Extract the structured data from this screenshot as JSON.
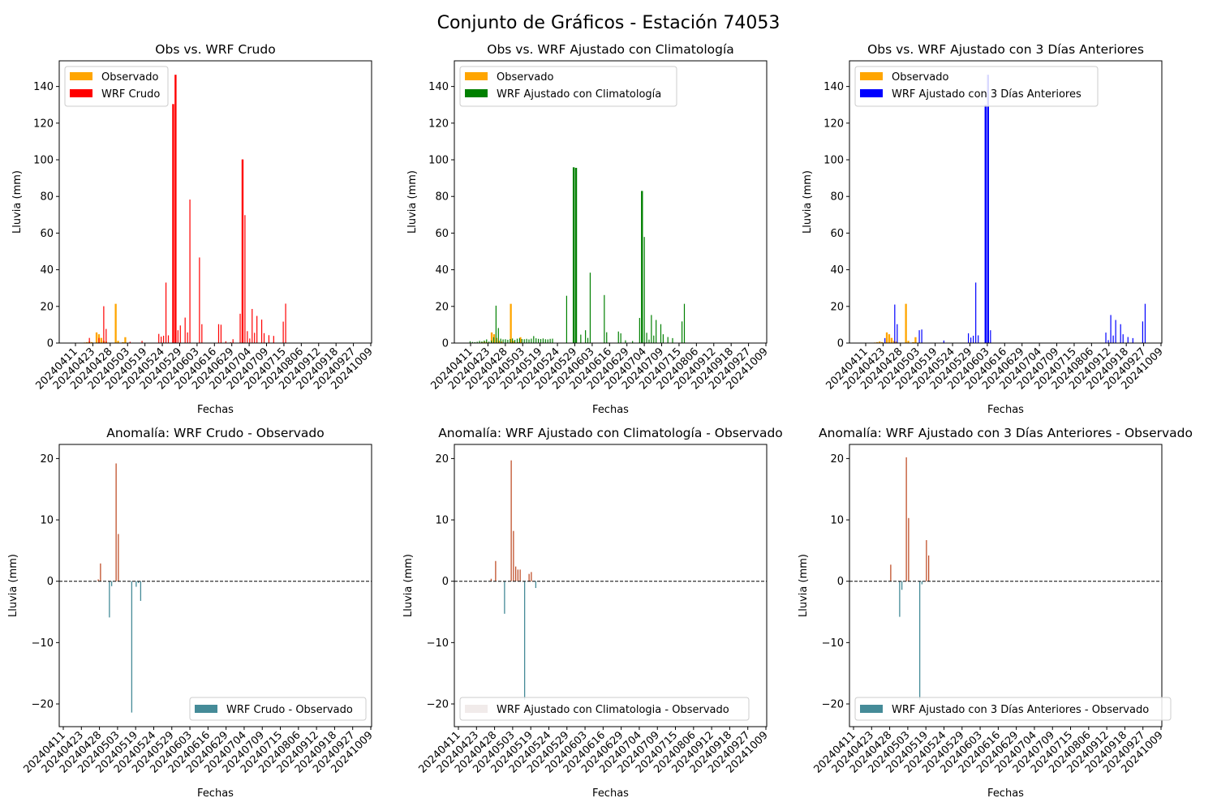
{
  "figure": {
    "title": "Conjunto de Gráficos - Estación 74053"
  },
  "colors": {
    "observed": "#ffa500",
    "wrf_raw": "#ff0000",
    "wrf_clim": "#008000",
    "wrf_3days": "#0000ff",
    "anomaly_negative": "#458b98",
    "anomaly_positive": "#c0502a",
    "legend_pale": "#f1ebea"
  },
  "chart_data": [
    {
      "type": "bar",
      "title": "Obs vs. WRF Crudo",
      "xlabel": "Fechas",
      "ylabel": "Lluvia (mm)",
      "ylim": [
        0,
        154
      ],
      "yticks": [
        0,
        20,
        40,
        60,
        80,
        100,
        120,
        140
      ],
      "xticks": [
        "20240411",
        "20240423",
        "20240428",
        "20240503",
        "20240519",
        "20240524",
        "20240529",
        "20240603",
        "20240616",
        "20240629",
        "20240704",
        "20240709",
        "20240715",
        "20240806",
        "20240912",
        "20240918",
        "20240927",
        "20241009"
      ],
      "legend": "top-left",
      "series": [
        {
          "name": "Observado",
          "color_key": "observed",
          "values": [
            0,
            0,
            0,
            0,
            0.3,
            0.5,
            0.8,
            0.5,
            0,
            5.8,
            4.8,
            2.8,
            1.2,
            0.8,
            0,
            0,
            0,
            21.4,
            1.2,
            0,
            0.5,
            3.2,
            0,
            0,
            0,
            0,
            0,
            0,
            0,
            0,
            0,
            0,
            0,
            0,
            0,
            0,
            0,
            0,
            0,
            0,
            0,
            0,
            0,
            0,
            0,
            0,
            0,
            0,
            0,
            0,
            0,
            0,
            0,
            0,
            0,
            0,
            0,
            0,
            0,
            0,
            0,
            0,
            0,
            0,
            0,
            0,
            0,
            0,
            0,
            0,
            0,
            0,
            0,
            0,
            0,
            0,
            0,
            0,
            0,
            0,
            0,
            0,
            0,
            0,
            0,
            0,
            0,
            0,
            0,
            0,
            0,
            0,
            0,
            0,
            0,
            0,
            0,
            0,
            0,
            0,
            0,
            0,
            0,
            0,
            0,
            0,
            0,
            0,
            0,
            0,
            0,
            0,
            0,
            0,
            0,
            0,
            0,
            0,
            0,
            0
          ]
        },
        {
          "name": "WRF Crudo",
          "color_key": "wrf_raw",
          "values": [
            0,
            0,
            0,
            0,
            0,
            0,
            2.8,
            0,
            0,
            0,
            2.8,
            0,
            20.1,
            7.7,
            0,
            0,
            0,
            0,
            0,
            0,
            0,
            0,
            0,
            0.7,
            0,
            0,
            0,
            0,
            1.2,
            0,
            0,
            0,
            0,
            0,
            0,
            5.0,
            3.5,
            4.0,
            33.0,
            4.2,
            0,
            130.4,
            146.4,
            7.0,
            9.6,
            0,
            13.9,
            5.8,
            78.3,
            0,
            0,
            0,
            46.7,
            10.3,
            0,
            0,
            0,
            0,
            0,
            0,
            10.3,
            10.0,
            0,
            1.0,
            0,
            0.5,
            2.1,
            0,
            0,
            16.0,
            100.2,
            69.8,
            6.5,
            2.5,
            18.6,
            5.6,
            14.8,
            0,
            12.8,
            5.4,
            0,
            4.3,
            0,
            3.9,
            0,
            0,
            0,
            11.7,
            21.5,
            0,
            0,
            0,
            0,
            0,
            0,
            0,
            0,
            0,
            0,
            0,
            0,
            0,
            0,
            0,
            0,
            0,
            0,
            0,
            0,
            0,
            0,
            0,
            0,
            0,
            0,
            0,
            0,
            0,
            0,
            0
          ]
        }
      ]
    },
    {
      "type": "bar",
      "title": "Obs vs. WRF Ajustado con Climatología",
      "xlabel": "Fechas",
      "ylabel": "Lluvia (mm)",
      "ylim": [
        0,
        154
      ],
      "yticks": [
        0,
        20,
        40,
        60,
        80,
        100,
        120,
        140
      ],
      "xticks": [
        "20240411",
        "20240423",
        "20240428",
        "20240503",
        "20240519",
        "20240524",
        "20240529",
        "20240603",
        "20240616",
        "20240629",
        "20240704",
        "20240709",
        "20240715",
        "20240806",
        "20240912",
        "20240918",
        "20240927",
        "20241009"
      ],
      "legend": "top-left",
      "series": [
        {
          "name": "Observado",
          "color_key": "observed",
          "values": [
            0,
            0,
            0,
            0,
            0.3,
            0.5,
            0.8,
            0.5,
            0,
            5.8,
            4.8,
            2.8,
            1.2,
            0.8,
            0,
            0,
            0,
            21.4,
            1.2,
            0,
            0.5,
            3.2,
            0,
            0,
            0,
            0,
            0,
            0,
            0,
            0,
            0,
            0,
            0,
            0,
            0,
            0,
            0,
            0,
            0,
            0,
            0,
            0,
            0,
            0,
            0,
            0,
            0,
            0,
            0,
            0,
            0,
            0,
            0,
            0,
            0,
            0,
            0,
            0,
            0,
            0,
            0,
            0,
            0,
            0,
            0,
            0,
            0,
            0,
            0,
            0,
            0,
            0,
            0,
            0,
            0,
            0,
            0,
            0,
            0,
            0,
            0,
            0,
            0,
            0,
            0,
            0,
            0,
            0,
            0,
            0,
            0,
            0,
            0,
            0,
            0,
            0,
            0,
            0,
            0,
            0,
            0,
            0,
            0,
            0,
            0,
            0,
            0,
            0,
            0,
            0,
            0,
            0,
            0,
            0,
            0,
            0,
            0,
            0,
            0,
            0
          ]
        },
        {
          "name": "WRF Ajustado con Climatología",
          "color_key": "wrf_clim",
          "values": [
            1.0,
            0.6,
            0.5,
            0.7,
            1.2,
            0.9,
            1.4,
            2.0,
            0.8,
            1.4,
            3.2,
            20.4,
            8.2,
            2.4,
            2.0,
            2.1,
            1.8,
            2.2,
            2.5,
            1.7,
            2.4,
            2.6,
            2.2,
            2.1,
            2.3,
            2.0,
            2.4,
            3.8,
            2.6,
            2.3,
            2.2,
            2.5,
            2.1,
            2.0,
            2.3,
            2.4,
            0,
            0,
            0,
            0,
            0,
            25.8,
            0,
            0,
            95.9,
            95.6,
            0,
            4.6,
            0,
            7.0,
            2.8,
            38.4,
            0,
            0,
            0,
            0,
            0,
            26.2,
            5.9,
            0,
            0,
            0,
            0,
            6.3,
            5.3,
            0,
            1.5,
            0,
            0,
            1.1,
            0,
            0,
            13.7,
            83.0,
            57.9,
            5.6,
            1.9,
            15.3,
            4.1,
            12.6,
            0,
            10.3,
            4.8,
            0,
            3.3,
            0,
            2.7,
            0,
            0,
            0,
            11.8,
            21.4,
            0,
            0,
            0,
            0,
            0,
            0,
            0,
            0,
            0,
            0,
            0,
            0,
            0,
            0,
            0,
            0,
            0,
            0,
            0,
            0,
            0,
            0,
            0,
            0,
            0,
            0,
            0,
            0,
            0,
            0
          ]
        }
      ]
    },
    {
      "type": "bar",
      "title": "Obs vs. WRF Ajustado con 3 Días Anteriores",
      "xlabel": "Fechas",
      "ylabel": "Lluvia (mm)",
      "ylim": [
        0,
        154
      ],
      "yticks": [
        0,
        20,
        40,
        60,
        80,
        100,
        120,
        140
      ],
      "xticks": [
        "20240411",
        "20240423",
        "20240428",
        "20240503",
        "20240519",
        "20240524",
        "20240529",
        "20240603",
        "20240616",
        "20240629",
        "20240704",
        "20240709",
        "20240715",
        "20240806",
        "20240912",
        "20240918",
        "20240927",
        "20241009"
      ],
      "legend": "top-left",
      "series": [
        {
          "name": "Observado",
          "color_key": "observed",
          "values": [
            0,
            0,
            0,
            0,
            0.3,
            0.5,
            0.8,
            0.5,
            0,
            5.8,
            4.8,
            2.8,
            1.2,
            0.8,
            0,
            0,
            0,
            21.4,
            1.2,
            0,
            0.5,
            3.2,
            0,
            0,
            0,
            0,
            0,
            0,
            0,
            0,
            0,
            0,
            0,
            0,
            0,
            0,
            0,
            0,
            0,
            0,
            0,
            0,
            0,
            0,
            0,
            0,
            0,
            0,
            0,
            0,
            0,
            0,
            0,
            0,
            0,
            0,
            0,
            0,
            0,
            0,
            0,
            0,
            0,
            0,
            0,
            0,
            0,
            0,
            0,
            0,
            0,
            0,
            0,
            0,
            0,
            0,
            0,
            0,
            0,
            0,
            0,
            0,
            0,
            0,
            0,
            0,
            0,
            0,
            0,
            0,
            0,
            0,
            0,
            0,
            0,
            0,
            0,
            0,
            0,
            0,
            0,
            0,
            0,
            0,
            0,
            0,
            0,
            0,
            0,
            0,
            0,
            0,
            0,
            0,
            0,
            0,
            0,
            0,
            0,
            0
          ]
        },
        {
          "name": "WRF Ajustado con 3 Días Anteriores",
          "color_key": "wrf_3days",
          "values": [
            0,
            0,
            0,
            0,
            0,
            0,
            0,
            0,
            2.7,
            0,
            0,
            0,
            21.0,
            10.3,
            0,
            0,
            0,
            0,
            0,
            0,
            0,
            0,
            7.0,
            7.4,
            0,
            0,
            0,
            0,
            0,
            0,
            0,
            0,
            1.4,
            0,
            0,
            0,
            0,
            0,
            0,
            0,
            0,
            0,
            5.3,
            3.0,
            4.0,
            33.0,
            4.2,
            0,
            0,
            130.0,
            146.4,
            7.0,
            0,
            0,
            0,
            0,
            0,
            0,
            0,
            0,
            0,
            0,
            0,
            0,
            0,
            0,
            0,
            0,
            0,
            0,
            0,
            0,
            0,
            0,
            0,
            0,
            0,
            0,
            0,
            0,
            0,
            0,
            0,
            0,
            0,
            0,
            0,
            0,
            0,
            0,
            0,
            0,
            0,
            0,
            0,
            0,
            0,
            0,
            5.7,
            1.6,
            15.3,
            4.1,
            12.6,
            0,
            10.3,
            4.8,
            0,
            3.3,
            0,
            2.7,
            0,
            0,
            0,
            11.8,
            21.4,
            0,
            0
          ]
        }
      ]
    },
    {
      "type": "bar",
      "title": "Anomalía: WRF Crudo - Observado",
      "xlabel": "Fechas",
      "ylabel": "Lluvia (mm)",
      "ylim": [
        -23.7,
        22.3
      ],
      "yticks": [
        -20,
        -10,
        0,
        10,
        20
      ],
      "xticks": [
        "20240411",
        "20240423",
        "20240428",
        "20240503",
        "20240519",
        "20240524",
        "20240529",
        "20240603",
        "20240616",
        "20240629",
        "20240704",
        "20240709",
        "20240715",
        "20240806",
        "20240912",
        "20240918",
        "20240927",
        "20241009"
      ],
      "legend": "bottom-right",
      "legend_color_key": "anomaly_negative",
      "series": [
        {
          "name": "WRF Crudo - Observado",
          "values": [
            0,
            0,
            0,
            0,
            0,
            0.3,
            2.9,
            0,
            0,
            0,
            -5.9,
            -0.8,
            0,
            19.2,
            7.7,
            0,
            0,
            0,
            0,
            0,
            -21.4,
            0,
            -0.9,
            -0.3,
            -3.2,
            0,
            0,
            0
          ]
        }
      ]
    },
    {
      "type": "bar",
      "title": "Anomalía: WRF Ajustado con Climatología - Observado",
      "xlabel": "Fechas",
      "ylabel": "Lluvia (mm)",
      "ylim": [
        -23.7,
        22.3
      ],
      "yticks": [
        -20,
        -10,
        0,
        10,
        20
      ],
      "xticks": [
        "20240411",
        "20240423",
        "20240428",
        "20240503",
        "20240519",
        "20240524",
        "20240529",
        "20240603",
        "20240616",
        "20240629",
        "20240704",
        "20240709",
        "20240715",
        "20240806",
        "20240912",
        "20240918",
        "20240927",
        "20241009"
      ],
      "legend": "bottom-left",
      "legend_color_key": "legend_pale",
      "series": [
        {
          "name": "WRF Ajustado con Climatologia - Observado",
          "values": [
            0,
            0,
            0,
            0,
            0.4,
            0,
            3.3,
            0,
            0,
            0,
            -5.3,
            0,
            0,
            19.7,
            8.2,
            2.4,
            1.9,
            1.9,
            0,
            -19.3,
            0,
            1.2,
            1.5,
            0,
            -1.1,
            0,
            0,
            0
          ]
        }
      ]
    },
    {
      "type": "bar",
      "title": "Anomalía: WRF Ajustado con 3 Días Anteriores - Observado",
      "xlabel": "Fechas",
      "ylabel": "Lluvia (mm)",
      "ylim": [
        -23.7,
        22.3
      ],
      "yticks": [
        -20,
        -10,
        0,
        10,
        20
      ],
      "xticks": [
        "20240411",
        "20240423",
        "20240428",
        "20240503",
        "20240519",
        "20240524",
        "20240529",
        "20240603",
        "20240616",
        "20240629",
        "20240704",
        "20240709",
        "20240715",
        "20240806",
        "20240912",
        "20240918",
        "20240927",
        "20241009"
      ],
      "legend": "bottom-left",
      "legend_color_key": "anomaly_negative",
      "series": [
        {
          "name": "WRF Ajustado con 3 Días Anteriores - Observado",
          "values": [
            0,
            0,
            0,
            0,
            0,
            0,
            2.7,
            0,
            0,
            0,
            -5.8,
            -1.4,
            0,
            20.2,
            10.3,
            0,
            0,
            0,
            0,
            -19.3,
            -0.5,
            0,
            6.7,
            4.2,
            0,
            0,
            0,
            0
          ]
        }
      ]
    }
  ]
}
